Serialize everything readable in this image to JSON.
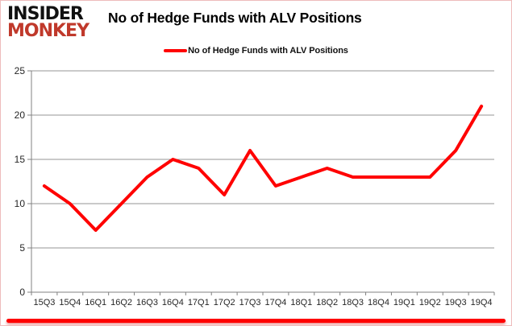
{
  "logo": {
    "line1": "INSIDER",
    "line2": "MONKEY",
    "line1_color": "#111111",
    "line2_color": "#c0392b"
  },
  "header": {
    "title": "No of Hedge Funds with ALV Positions"
  },
  "legend": {
    "label": "No of Hedge Funds with ALV Positions",
    "line_color": "#ff0000"
  },
  "chart_data": {
    "type": "line",
    "title": "No of Hedge Funds with ALV Positions",
    "categories": [
      "15Q3",
      "15Q4",
      "16Q1",
      "16Q2",
      "16Q3",
      "16Q4",
      "17Q1",
      "17Q2",
      "17Q3",
      "17Q4",
      "18Q1",
      "18Q2",
      "18Q3",
      "18Q4",
      "19Q1",
      "19Q2",
      "19Q3",
      "19Q4"
    ],
    "series": [
      {
        "name": "No of Hedge Funds with ALV Positions",
        "color": "#ff0000",
        "values": [
          12,
          10,
          7,
          10,
          13,
          15,
          14,
          11,
          16,
          12,
          13,
          14,
          13,
          13,
          13,
          13,
          16,
          21
        ]
      }
    ],
    "xlabel": "",
    "ylabel": "",
    "ylim": [
      0,
      25
    ],
    "yticks": [
      0,
      5,
      10,
      15,
      20,
      25
    ],
    "grid": true,
    "legend_position": "top-center"
  },
  "colors": {
    "grid": "#969696",
    "axis": "#808080",
    "tick_text": "#262626",
    "accent_bar": "#ff0000",
    "page_border": "#eebcbc"
  }
}
